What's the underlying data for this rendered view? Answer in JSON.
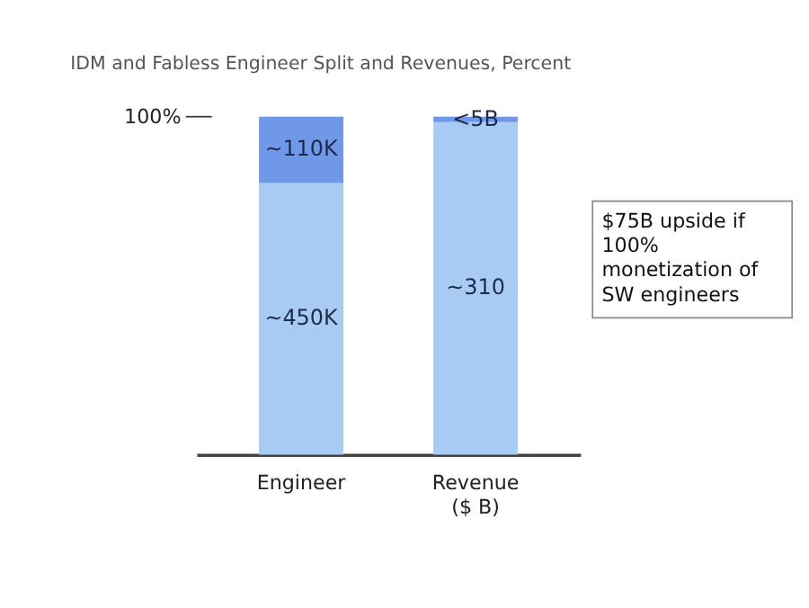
{
  "chart_data": {
    "type": "bar",
    "title": "IDM and Fabless Engineer Split and Revenues, Percent",
    "categories": [
      "Engineer",
      "Revenue\n($ B)"
    ],
    "stacked": true,
    "series": [
      {
        "color": "#a8cbf3",
        "values": [
          450,
          null
        ],
        "value_labels": [
          "~450K",
          null
        ]
      },
      {
        "color": "#6f98e8",
        "values": [
          110,
          null
        ],
        "value_labels": [
          "~110K",
          null
        ]
      },
      {
        "color": "#a8cbf3",
        "values": [
          null,
          310
        ],
        "value_labels": [
          null,
          "~310"
        ],
        "axis": "y2"
      },
      {
        "color": "#6f98e8",
        "values": [
          null,
          5
        ],
        "value_labels": [
          null,
          "<5B"
        ],
        "axis": "y2"
      }
    ],
    "annotations": [
      "100%",
      "$75B upside if 100% monetization of SW engineers"
    ]
  }
}
